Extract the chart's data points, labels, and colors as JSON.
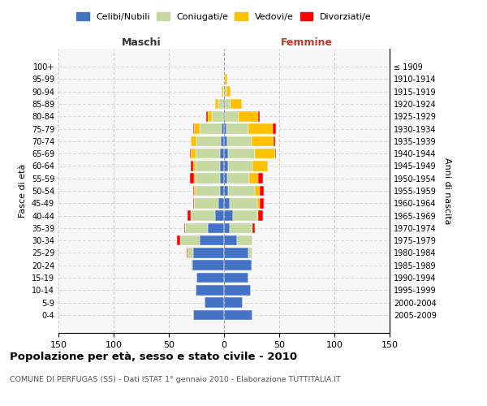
{
  "age_groups": [
    "0-4",
    "5-9",
    "10-14",
    "15-19",
    "20-24",
    "25-29",
    "30-34",
    "35-39",
    "40-44",
    "45-49",
    "50-54",
    "55-59",
    "60-64",
    "65-69",
    "70-74",
    "75-79",
    "80-84",
    "85-89",
    "90-94",
    "95-99",
    "100+"
  ],
  "birth_years": [
    "2005-2009",
    "2000-2004",
    "1995-1999",
    "1990-1994",
    "1985-1989",
    "1980-1984",
    "1975-1979",
    "1970-1974",
    "1965-1969",
    "1960-1964",
    "1955-1959",
    "1950-1954",
    "1945-1949",
    "1940-1944",
    "1935-1939",
    "1930-1934",
    "1925-1929",
    "1920-1924",
    "1915-1919",
    "1910-1914",
    "≤ 1909"
  ],
  "male": {
    "celibi": [
      28,
      18,
      26,
      25,
      29,
      28,
      22,
      15,
      8,
      5,
      4,
      4,
      4,
      4,
      3,
      2,
      1,
      1,
      0,
      0,
      0
    ],
    "coniugati": [
      0,
      0,
      0,
      0,
      1,
      5,
      18,
      20,
      22,
      22,
      22,
      22,
      22,
      22,
      22,
      20,
      10,
      4,
      1,
      0,
      0
    ],
    "vedovi": [
      0,
      0,
      0,
      0,
      0,
      0,
      0,
      0,
      0,
      0,
      1,
      1,
      2,
      4,
      5,
      5,
      4,
      3,
      1,
      0,
      0
    ],
    "divorziati": [
      0,
      0,
      0,
      0,
      0,
      1,
      3,
      1,
      3,
      1,
      1,
      4,
      2,
      1,
      0,
      1,
      1,
      0,
      0,
      0,
      0
    ]
  },
  "female": {
    "nubili": [
      26,
      17,
      24,
      22,
      25,
      22,
      12,
      5,
      8,
      5,
      4,
      3,
      4,
      4,
      3,
      2,
      1,
      1,
      0,
      0,
      0
    ],
    "coniugate": [
      0,
      0,
      0,
      0,
      1,
      4,
      14,
      20,
      22,
      25,
      24,
      20,
      22,
      24,
      22,
      20,
      12,
      5,
      2,
      1,
      0
    ],
    "vedove": [
      0,
      0,
      0,
      0,
      0,
      0,
      0,
      1,
      1,
      2,
      4,
      8,
      14,
      18,
      20,
      22,
      18,
      10,
      4,
      2,
      0
    ],
    "divorziate": [
      0,
      0,
      0,
      0,
      0,
      0,
      0,
      2,
      4,
      4,
      4,
      4,
      0,
      1,
      1,
      3,
      1,
      0,
      0,
      0,
      0
    ]
  },
  "colors": {
    "celibi_nubili": "#4472c4",
    "coniugati": "#c5d9a0",
    "vedovi": "#ffc000",
    "divorziati": "#ff0000"
  },
  "xlim": 150,
  "title": "Popolazione per età, sesso e stato civile - 2010",
  "subtitle": "COMUNE DI PERFUGAS (SS) - Dati ISTAT 1° gennaio 2010 - Elaborazione TUTTITALIA.IT",
  "ylabel_left": "Fasce di età",
  "ylabel_right": "Anni di nascita",
  "xlabel_left": "Maschi",
  "xlabel_right": "Femmine"
}
